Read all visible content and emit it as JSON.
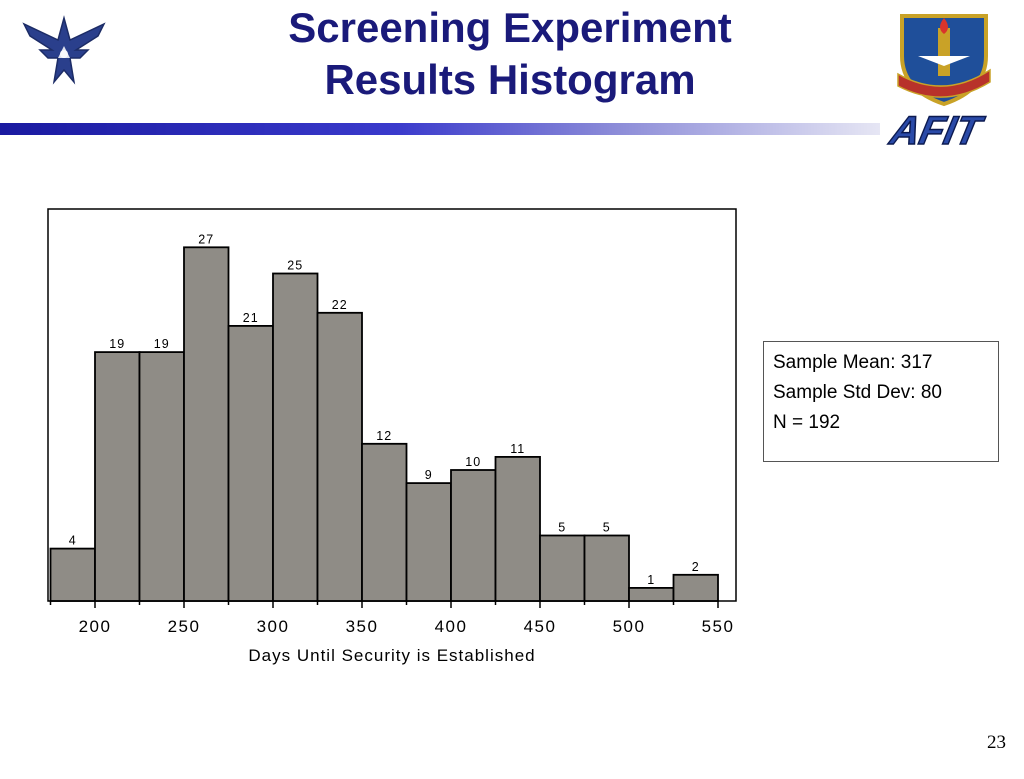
{
  "slide": {
    "title_line1": "Screening Experiment",
    "title_line2": "Results Histogram",
    "page_number": "23",
    "logo_left_icon": "air-force-wings-icon",
    "logo_right_icon": "aetc-shield-icon",
    "brand_word": "AFIT",
    "colors": {
      "title": "#1a1a7a",
      "banner": "#2a2ab8",
      "bar_fill": "#8f8c86"
    }
  },
  "stats": {
    "mean": "Sample Mean: 317",
    "std": "Sample Std Dev: 80",
    "n": "N = 192"
  },
  "chart_data": {
    "type": "bar",
    "title": "",
    "xlabel": "Days Until Security is Established",
    "ylabel": "",
    "bin_width": 25,
    "x": [
      187.5,
      212.5,
      237.5,
      262.5,
      287.5,
      312.5,
      337.5,
      362.5,
      387.5,
      412.5,
      437.5,
      462.5,
      487.5,
      512.5,
      537.5
    ],
    "values": [
      4,
      19,
      19,
      27,
      21,
      25,
      22,
      12,
      9,
      10,
      11,
      5,
      5,
      1,
      2
    ],
    "xticks": [
      200,
      250,
      300,
      350,
      400,
      450,
      500,
      550
    ],
    "xlim": [
      170,
      560
    ],
    "ylim": [
      0,
      30
    ],
    "grid": false,
    "legend": "none"
  }
}
